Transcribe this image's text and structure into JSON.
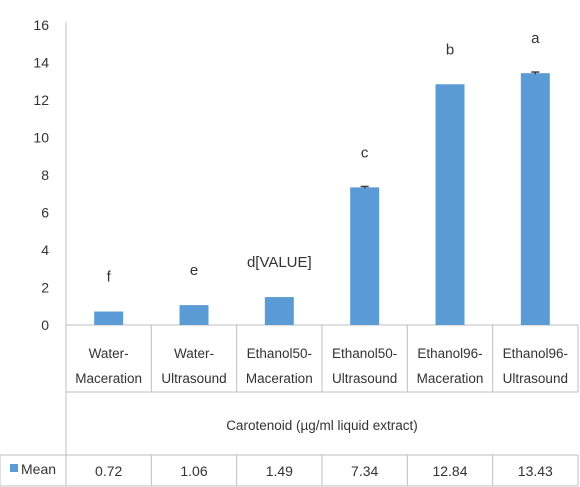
{
  "chart_data": {
    "type": "bar",
    "categories": [
      [
        "Water-",
        "Maceration"
      ],
      [
        "Water-",
        "Ultrasound"
      ],
      [
        "Ethanol50-",
        "Maceration"
      ],
      [
        "Ethanol50-",
        "Ultrasound"
      ],
      [
        "Ethanol96-",
        "Maceration"
      ],
      [
        "Ethanol96-",
        "Ultrasound"
      ]
    ],
    "series": [
      {
        "name": "Mean",
        "values": [
          0.72,
          1.06,
          1.49,
          7.34,
          12.84,
          13.43
        ],
        "error": [
          0,
          0,
          0,
          0.05,
          0,
          0.06
        ]
      }
    ],
    "value_labels": [
      "0.72",
      "1.06",
      "1.49",
      "7.34",
      "12.84",
      "13.43"
    ],
    "significance_letters": [
      "f",
      "e",
      "d[VALUE]",
      "c",
      "b",
      "a"
    ],
    "xlabel": "Carotenoid (µg/ml liquid extract)",
    "ylabel": "",
    "ylim": [
      0,
      16
    ],
    "yticks": [
      0,
      2,
      4,
      6,
      8,
      10,
      12,
      14,
      16
    ],
    "grid": false,
    "legend": "data-table-left",
    "colors": {
      "bar": "#5b9bd5",
      "axis": "#bfbfbf",
      "text": "#333333",
      "error": "#404040"
    }
  }
}
